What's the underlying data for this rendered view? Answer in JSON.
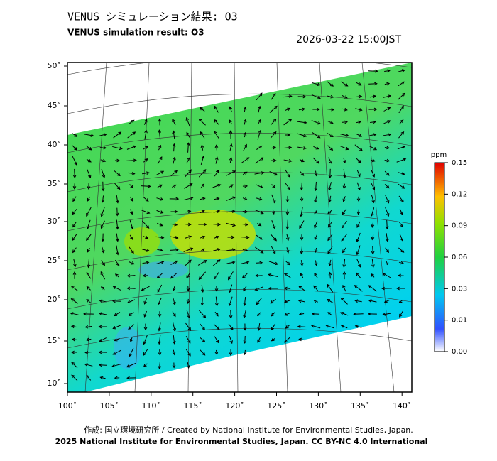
{
  "header": {
    "title": "VENUS シミュレーション結果: O3",
    "subtitle": "VENUS simulation result: O3",
    "timestamp": "2026-03-22 15:00JST"
  },
  "map": {
    "lat_labels": [
      "50˚",
      "45˚",
      "40˚",
      "35˚",
      "30˚",
      "25˚",
      "20˚",
      "15˚",
      "10˚"
    ],
    "lon_labels": [
      "100˚",
      "105˚",
      "110˚",
      "115˚",
      "120˚",
      "125˚",
      "130˚",
      "135˚",
      "140˚"
    ]
  },
  "colorbar": {
    "unit": "ppm",
    "labels": [
      "0.15",
      "0.12",
      "0.09",
      "0.06",
      "0.03",
      "0.01",
      "0.00"
    ]
  },
  "footer": {
    "credit": "作成: 国立環境研究所 / Created by National Institute for Environmental Studies, Japan.",
    "license": "2025 National Institute for Environmental Studies, Japan. CC BY-NC 4.0 International"
  }
}
